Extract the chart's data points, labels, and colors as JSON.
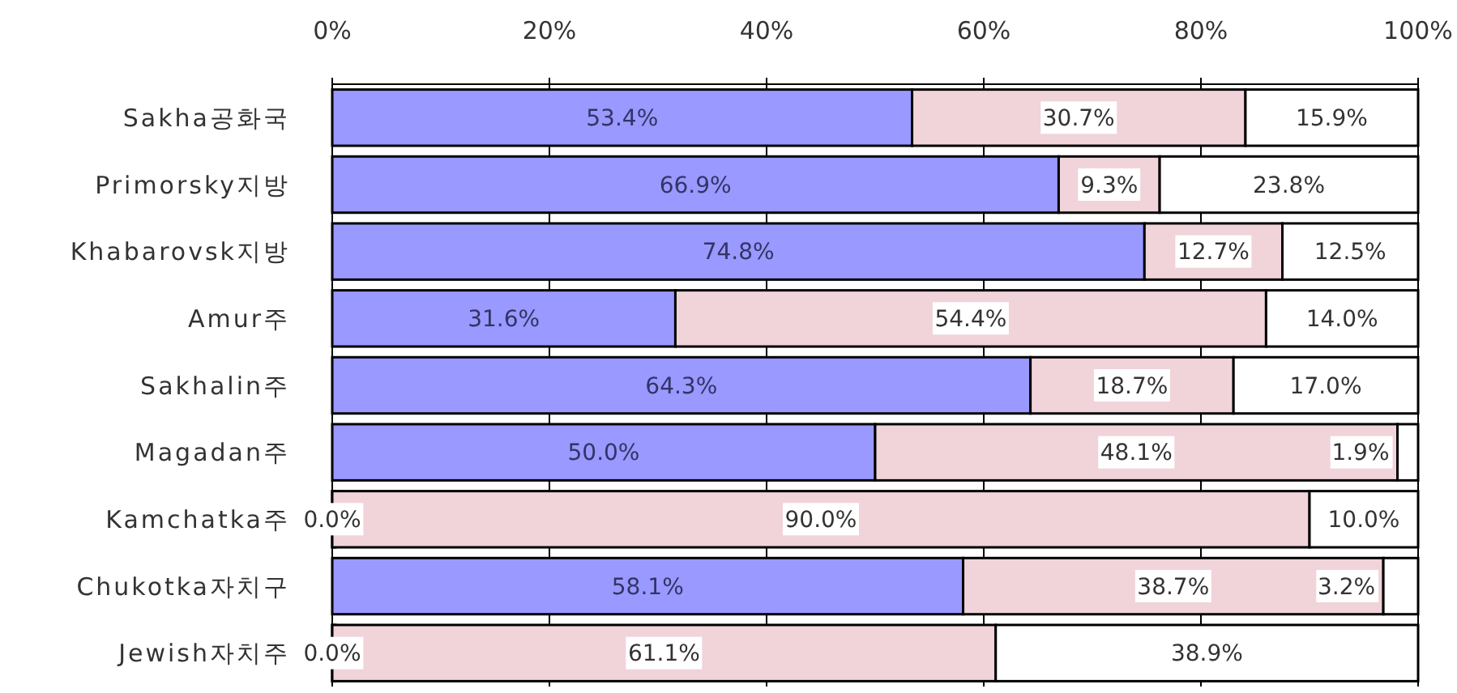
{
  "chart_data": {
    "type": "bar",
    "orientation": "horizontal",
    "stacked": true,
    "categories": [
      "Sakha공화국",
      "Primorsky지방",
      "Khabarovsk지방",
      "Amur주",
      "Sakhalin주",
      "Magadan주",
      "Kamchatka주",
      "Chukotka자치구",
      "Jewish자치주"
    ],
    "series": [
      {
        "color": "#9999ff",
        "values": [
          53.4,
          66.9,
          74.8,
          31.6,
          64.3,
          50.0,
          0.0,
          58.1,
          0.0
        ],
        "value_labels": [
          "53.4%",
          "66.9%",
          "74.8%",
          "31.6%",
          "64.3%",
          "50.0%",
          "0.0%",
          "58.1%",
          "0.0%"
        ]
      },
      {
        "color": "#f0d4da",
        "values": [
          30.7,
          9.3,
          12.7,
          54.4,
          18.7,
          48.1,
          90.0,
          38.7,
          61.1
        ],
        "value_labels": [
          "30.7%",
          "9.3%",
          "12.7%",
          "54.4%",
          "18.7%",
          "48.1%",
          "90.0%",
          "38.7%",
          "61.1%"
        ]
      },
      {
        "color": "#ffffff",
        "values": [
          15.9,
          23.8,
          12.5,
          14.0,
          17.0,
          1.9,
          10.0,
          3.2,
          38.9
        ],
        "value_labels": [
          "15.9%",
          "23.8%",
          "12.5%",
          "14.0%",
          "17.0%",
          "1.9%",
          "10.0%",
          "3.2%",
          "38.9%"
        ]
      }
    ],
    "xlim": [
      0,
      100
    ],
    "xticks": [
      {
        "value": 0,
        "label": "0%"
      },
      {
        "value": 20,
        "label": "20%"
      },
      {
        "value": 40,
        "label": "40%"
      },
      {
        "value": 60,
        "label": "60%"
      },
      {
        "value": 80,
        "label": "80%"
      },
      {
        "value": 100,
        "label": "100%"
      }
    ],
    "grid": "x",
    "legend": false
  }
}
